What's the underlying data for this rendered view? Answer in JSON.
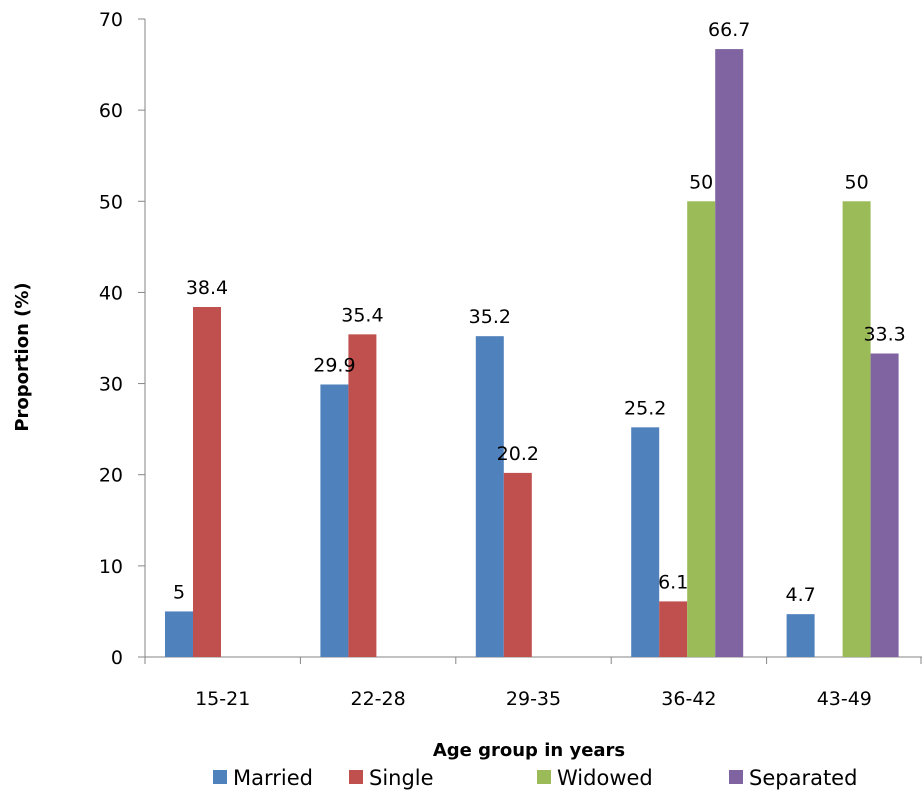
{
  "chart_data": {
    "type": "bar",
    "categories": [
      "15-21",
      "22-28",
      "29-35",
      "36-42",
      "43-49"
    ],
    "series": [
      {
        "name": "Married",
        "color": "#4F81BD",
        "values": [
          5,
          29.9,
          35.2,
          25.2,
          4.7
        ],
        "labels": [
          "5",
          "29.9",
          "35.2",
          "25.2",
          "4.7"
        ]
      },
      {
        "name": "Single",
        "color": "#C0504D",
        "values": [
          38.4,
          35.4,
          20.2,
          6.1,
          null
        ],
        "labels": [
          "38.4",
          "35.4",
          "20.2",
          "6.1",
          ""
        ]
      },
      {
        "name": "Widowed",
        "color": "#9BBB59",
        "values": [
          null,
          null,
          null,
          50,
          50
        ],
        "labels": [
          "",
          "",
          "",
          "50",
          "50"
        ]
      },
      {
        "name": "Separated",
        "color": "#8064A2",
        "values": [
          null,
          null,
          null,
          66.7,
          33.3
        ],
        "labels": [
          "",
          "",
          "",
          "66.7",
          "33.3"
        ]
      }
    ],
    "yticks": [
      "0",
      "10",
      "20",
      "30",
      "40",
      "50",
      "60",
      "70"
    ],
    "ylim": [
      0,
      70
    ],
    "xlabel": "Age group in years",
    "ylabel": "Proportion (%)",
    "grid": false,
    "legend": "bottom"
  }
}
